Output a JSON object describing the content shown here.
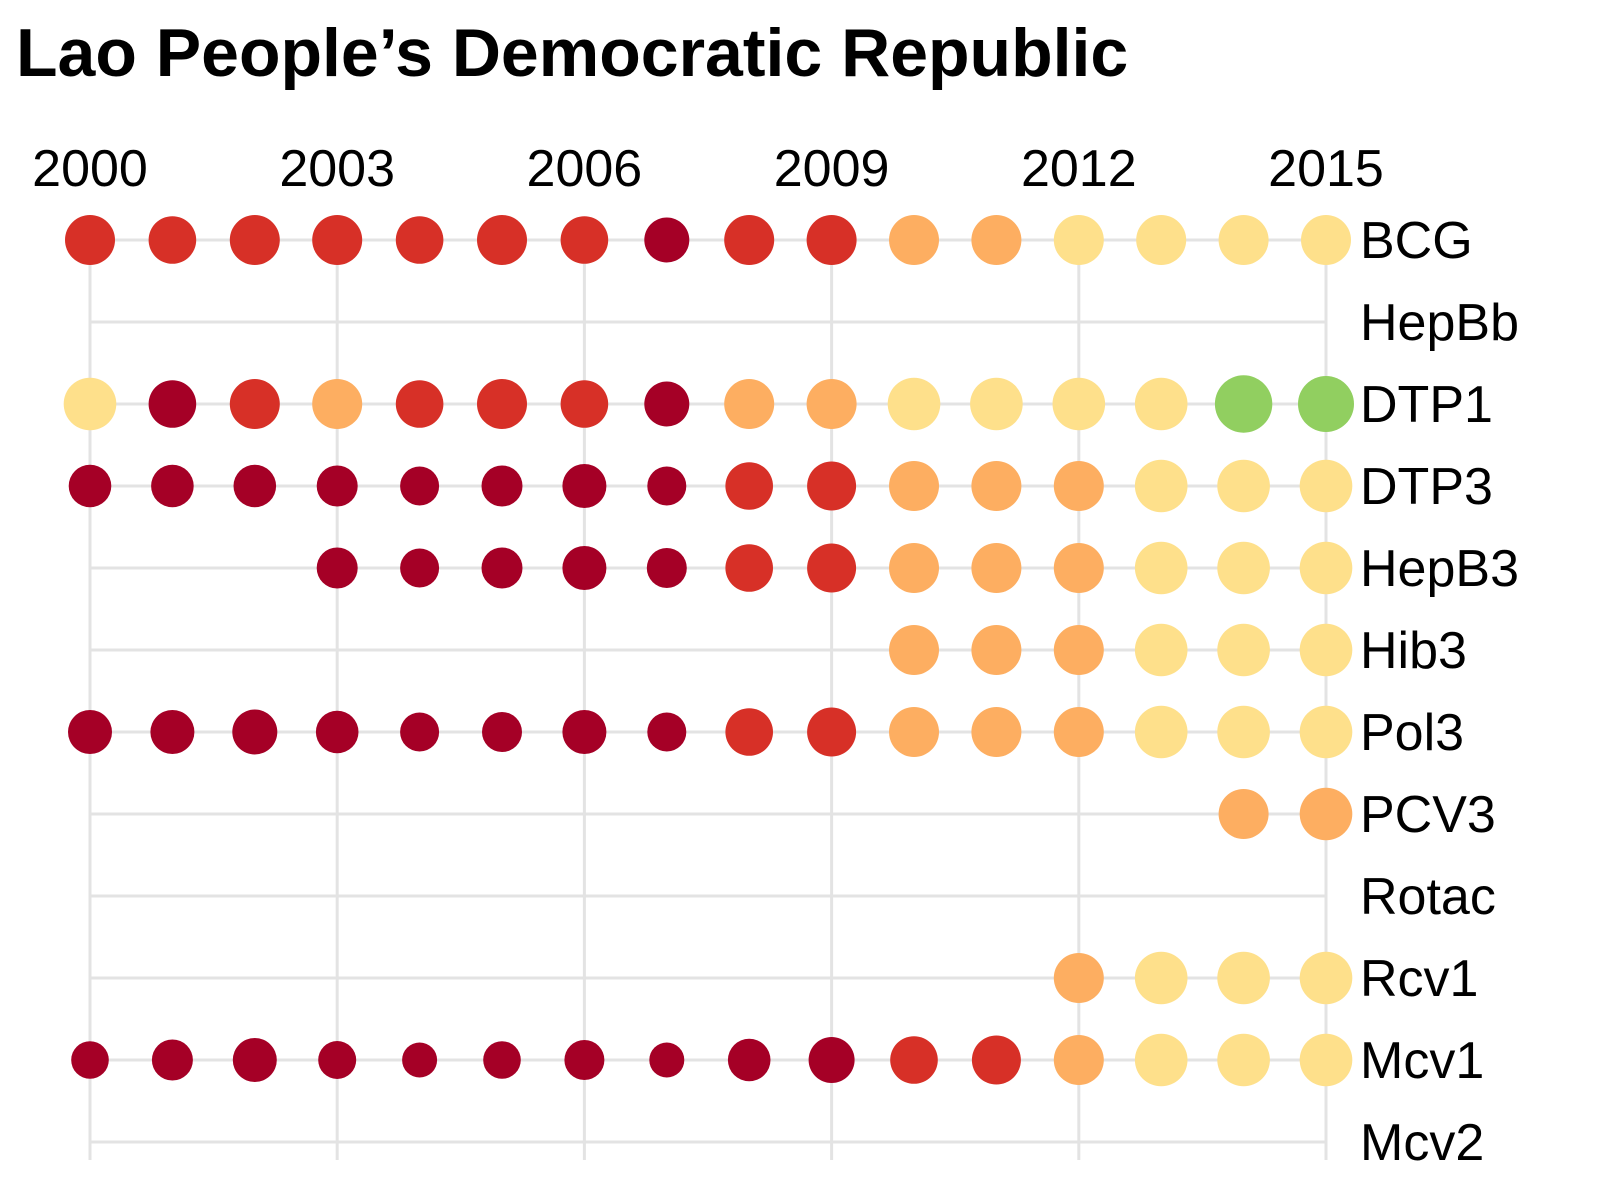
{
  "chart_data": {
    "type": "scatter",
    "title": "Lao People’s Democratic Republic",
    "x_ticks": [
      "2000",
      "2003",
      "2006",
      "2009",
      "2012",
      "2015"
    ],
    "x": [
      2000,
      2001,
      2002,
      2003,
      2004,
      2005,
      2006,
      2007,
      2008,
      2009,
      2010,
      2011,
      2012,
      2013,
      2014,
      2015
    ],
    "xlim": [
      2000,
      2015
    ],
    "grid": true,
    "legend": "none",
    "colors": {
      "dark_red": "#a50026",
      "red": "#d73027",
      "orange": "#fdae61",
      "yellow": "#fee08b",
      "green": "#91cf60",
      "grid": "#e3e3e3"
    },
    "series": [
      {
        "name": "BCG",
        "colors": [
          "red",
          "red",
          "red",
          "red",
          "red",
          "red",
          "red",
          "dark_red",
          "red",
          "red",
          "orange",
          "orange",
          "yellow",
          "yellow",
          "yellow",
          "yellow"
        ],
        "sizes": [
          1.0,
          0.95,
          1.0,
          1.0,
          0.95,
          1.0,
          0.95,
          0.9,
          1.0,
          1.0,
          1.0,
          1.0,
          1.0,
          1.0,
          1.0,
          1.0
        ]
      },
      {
        "name": "HepBb",
        "colors": [],
        "sizes": []
      },
      {
        "name": "DTP1",
        "colors": [
          "yellow",
          "dark_red",
          "red",
          "orange",
          "red",
          "red",
          "red",
          "dark_red",
          "orange",
          "orange",
          "yellow",
          "yellow",
          "yellow",
          "yellow",
          "green",
          "green"
        ],
        "sizes": [
          1.05,
          0.95,
          1.0,
          1.0,
          0.95,
          1.0,
          0.95,
          0.9,
          1.0,
          1.0,
          1.05,
          1.05,
          1.05,
          1.05,
          1.15,
          1.12
        ]
      },
      {
        "name": "DTP3",
        "colors": [
          "dark_red",
          "dark_red",
          "dark_red",
          "dark_red",
          "dark_red",
          "dark_red",
          "dark_red",
          "dark_red",
          "red",
          "red",
          "orange",
          "orange",
          "orange",
          "yellow",
          "yellow",
          "yellow"
        ],
        "sizes": [
          0.85,
          0.85,
          0.85,
          0.82,
          0.78,
          0.82,
          0.88,
          0.78,
          0.95,
          0.98,
          1.0,
          1.0,
          1.0,
          1.05,
          1.05,
          1.05
        ]
      },
      {
        "name": "HepB3",
        "colors": [
          "",
          "",
          "",
          "dark_red",
          "dark_red",
          "dark_red",
          "dark_red",
          "dark_red",
          "red",
          "red",
          "orange",
          "orange",
          "orange",
          "yellow",
          "yellow",
          "yellow"
        ],
        "sizes": [
          0,
          0,
          0,
          0.82,
          0.78,
          0.82,
          0.88,
          0.8,
          0.95,
          0.98,
          1.0,
          1.0,
          1.0,
          1.05,
          1.05,
          1.05
        ]
      },
      {
        "name": "Hib3",
        "colors": [
          "",
          "",
          "",
          "",
          "",
          "",
          "",
          "",
          "",
          "",
          "orange",
          "orange",
          "orange",
          "yellow",
          "yellow",
          "yellow"
        ],
        "sizes": [
          0,
          0,
          0,
          0,
          0,
          0,
          0,
          0,
          0,
          0,
          1.0,
          1.0,
          1.0,
          1.05,
          1.05,
          1.05
        ]
      },
      {
        "name": "Pol3",
        "colors": [
          "dark_red",
          "dark_red",
          "dark_red",
          "dark_red",
          "dark_red",
          "dark_red",
          "dark_red",
          "dark_red",
          "red",
          "red",
          "orange",
          "orange",
          "orange",
          "yellow",
          "yellow",
          "yellow"
        ],
        "sizes": [
          0.88,
          0.88,
          0.9,
          0.85,
          0.78,
          0.8,
          0.88,
          0.78,
          0.95,
          0.98,
          1.0,
          1.0,
          1.0,
          1.05,
          1.05,
          1.05
        ]
      },
      {
        "name": "PCV3",
        "colors": [
          "",
          "",
          "",
          "",
          "",
          "",
          "",
          "",
          "",
          "",
          "",
          "",
          "",
          "",
          "orange",
          "orange"
        ],
        "sizes": [
          0,
          0,
          0,
          0,
          0,
          0,
          0,
          0,
          0,
          0,
          0,
          0,
          0,
          0,
          1.0,
          1.05
        ]
      },
      {
        "name": "Rotac",
        "colors": [],
        "sizes": []
      },
      {
        "name": "Rcv1",
        "colors": [
          "",
          "",
          "",
          "",
          "",
          "",
          "",
          "",
          "",
          "",
          "",
          "",
          "orange",
          "yellow",
          "yellow",
          "yellow"
        ],
        "sizes": [
          0,
          0,
          0,
          0,
          0,
          0,
          0,
          0,
          0,
          0,
          0,
          0,
          1.0,
          1.05,
          1.05,
          1.05
        ]
      },
      {
        "name": "Mcv1",
        "colors": [
          "dark_red",
          "dark_red",
          "dark_red",
          "dark_red",
          "dark_red",
          "dark_red",
          "dark_red",
          "dark_red",
          "dark_red",
          "dark_red",
          "red",
          "red",
          "orange",
          "yellow",
          "yellow",
          "yellow"
        ],
        "sizes": [
          0.75,
          0.82,
          0.88,
          0.76,
          0.7,
          0.75,
          0.8,
          0.7,
          0.85,
          0.92,
          0.95,
          0.98,
          1.0,
          1.05,
          1.05,
          1.05
        ]
      },
      {
        "name": "Mcv2",
        "colors": [],
        "sizes": []
      }
    ]
  }
}
